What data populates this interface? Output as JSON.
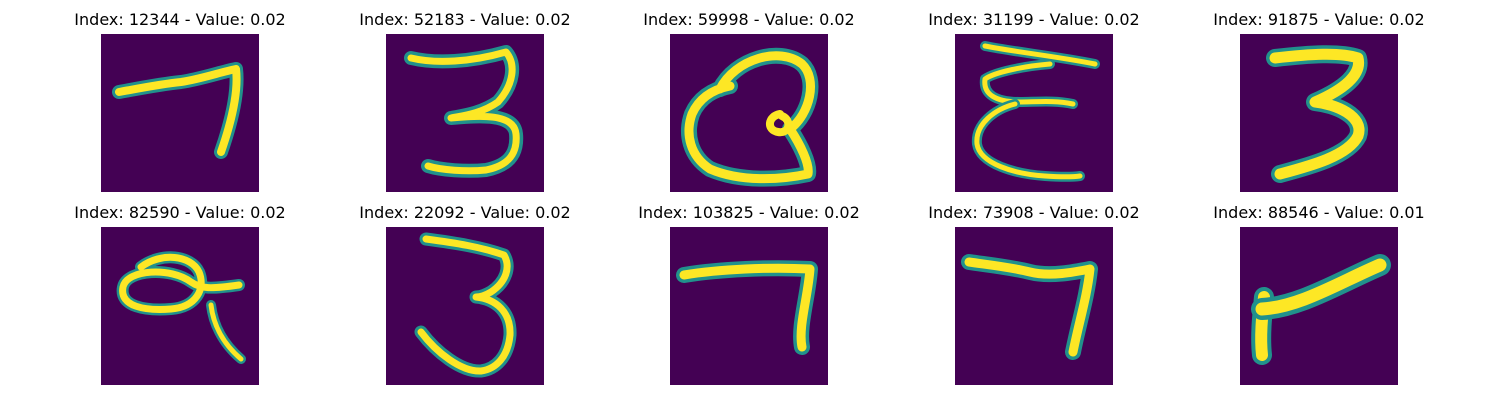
{
  "colors": {
    "background": "#440154",
    "stroke_outer": "#21918c",
    "stroke_mid": "#5ec962",
    "stroke_core": "#fde725"
  },
  "panels": [
    {
      "title": "Index: 12344 - Value: 0.02",
      "digit_image": "handwritten-7"
    },
    {
      "title": "Index: 52183 - Value: 0.02",
      "digit_image": "handwritten-3"
    },
    {
      "title": "Index: 59998 - Value: 0.02",
      "digit_image": "handwritten-looped-glyph"
    },
    {
      "title": "Index: 31199 - Value: 0.02",
      "digit_image": "handwritten-reversed-3"
    },
    {
      "title": "Index: 91875 - Value: 0.02",
      "digit_image": "handwritten-3"
    },
    {
      "title": "Index: 82590 - Value: 0.02",
      "digit_image": "handwritten-looped-glyph"
    },
    {
      "title": "Index: 22092 - Value: 0.02",
      "digit_image": "handwritten-3"
    },
    {
      "title": "Index: 103825 - Value: 0.02",
      "digit_image": "handwritten-7"
    },
    {
      "title": "Index: 73908 - Value: 0.02",
      "digit_image": "handwritten-7"
    },
    {
      "title": "Index: 88546 - Value: 0.01",
      "digit_image": "handwritten-4"
    }
  ]
}
